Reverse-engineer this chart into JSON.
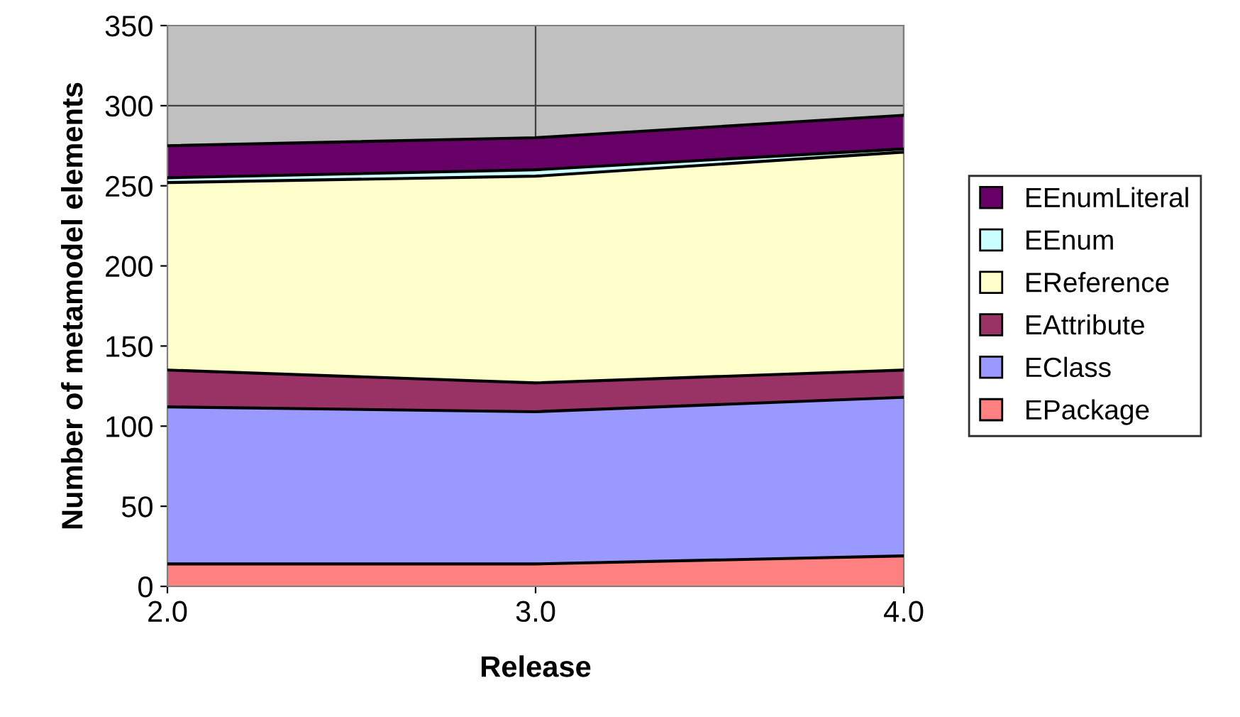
{
  "chart_data": {
    "type": "area",
    "stacked": true,
    "xlabel": "Release",
    "ylabel": "Number of metamodel elements",
    "x": [
      2.0,
      3.0,
      4.0
    ],
    "xlim": [
      2.0,
      4.0
    ],
    "xticks": [
      {
        "value": 2.0,
        "label": "2.0"
      },
      {
        "value": 3.0,
        "label": "3.0"
      },
      {
        "value": 4.0,
        "label": "4.0"
      }
    ],
    "ylim": [
      0,
      350
    ],
    "yticks": [
      0,
      50,
      100,
      150,
      200,
      250,
      300,
      350
    ],
    "grid": true,
    "legend": "right",
    "series": [
      {
        "name": "EPackage",
        "color": "#ff8080",
        "values": [
          14,
          14,
          19
        ]
      },
      {
        "name": "EClass",
        "color": "#9999ff",
        "values": [
          98,
          95,
          99
        ]
      },
      {
        "name": "EAttribute",
        "color": "#993366",
        "values": [
          23,
          18,
          17
        ]
      },
      {
        "name": "EReference",
        "color": "#ffffcc",
        "values": [
          117,
          129,
          136
        ]
      },
      {
        "name": "EEnum",
        "color": "#ccffff",
        "values": [
          3,
          4,
          2
        ]
      },
      {
        "name": "EEnumLiteral",
        "color": "#660066",
        "values": [
          20,
          20,
          21
        ]
      }
    ]
  }
}
